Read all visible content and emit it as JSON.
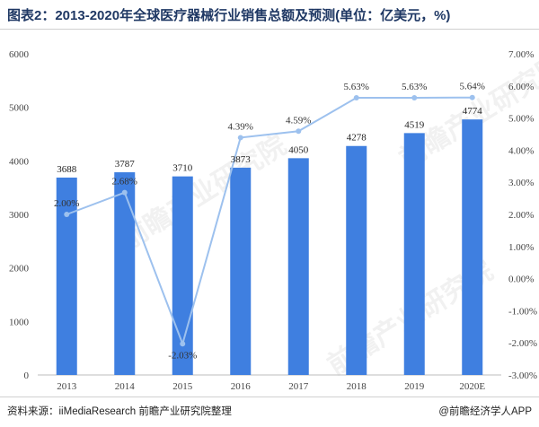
{
  "title": "图表2：2013-2020年全球医疗器械行业销售总额及预测(单位：亿美元，%)",
  "source": "资料来源：iiMediaResearch 前瞻产业研究院整理",
  "brand": "@前瞻经济学人APP",
  "watermark": "前瞻产业研究院",
  "colors": {
    "bar": "#3f7fe0",
    "line": "#9dc1ee",
    "title": "#1f3864"
  },
  "chart_data": {
    "type": "bar",
    "categories": [
      "2013",
      "2014",
      "2015",
      "2016",
      "2017",
      "2018",
      "2019",
      "2020E"
    ],
    "series": [
      {
        "axis": "left",
        "type": "bar",
        "values": [
          3688,
          3787,
          3710,
          3873,
          4050,
          4278,
          4519,
          4774
        ],
        "labels": [
          "3688",
          "3787",
          "3710",
          "3873",
          "4050",
          "4278",
          "4519",
          "4774"
        ]
      },
      {
        "axis": "right",
        "type": "line",
        "values": [
          2.0,
          2.68,
          -2.03,
          4.39,
          4.59,
          5.63,
          5.63,
          5.64
        ],
        "labels": [
          "2.00%",
          "2.68%",
          "-2.03%",
          "4.39%",
          "4.59%",
          "5.63%",
          "5.63%",
          "5.64%"
        ]
      }
    ],
    "y_left": {
      "min": 0,
      "max": 6000,
      "ticks": [
        "0",
        "1000",
        "2000",
        "3000",
        "4000",
        "5000",
        "6000"
      ]
    },
    "y_right": {
      "min": -3,
      "max": 7,
      "ticks": [
        "-3.00%",
        "-2.00%",
        "-1.00%",
        "0.00%",
        "1.00%",
        "2.00%",
        "3.00%",
        "4.00%",
        "5.00%",
        "6.00%",
        "7.00%"
      ]
    },
    "grid": false,
    "legend": "none"
  }
}
